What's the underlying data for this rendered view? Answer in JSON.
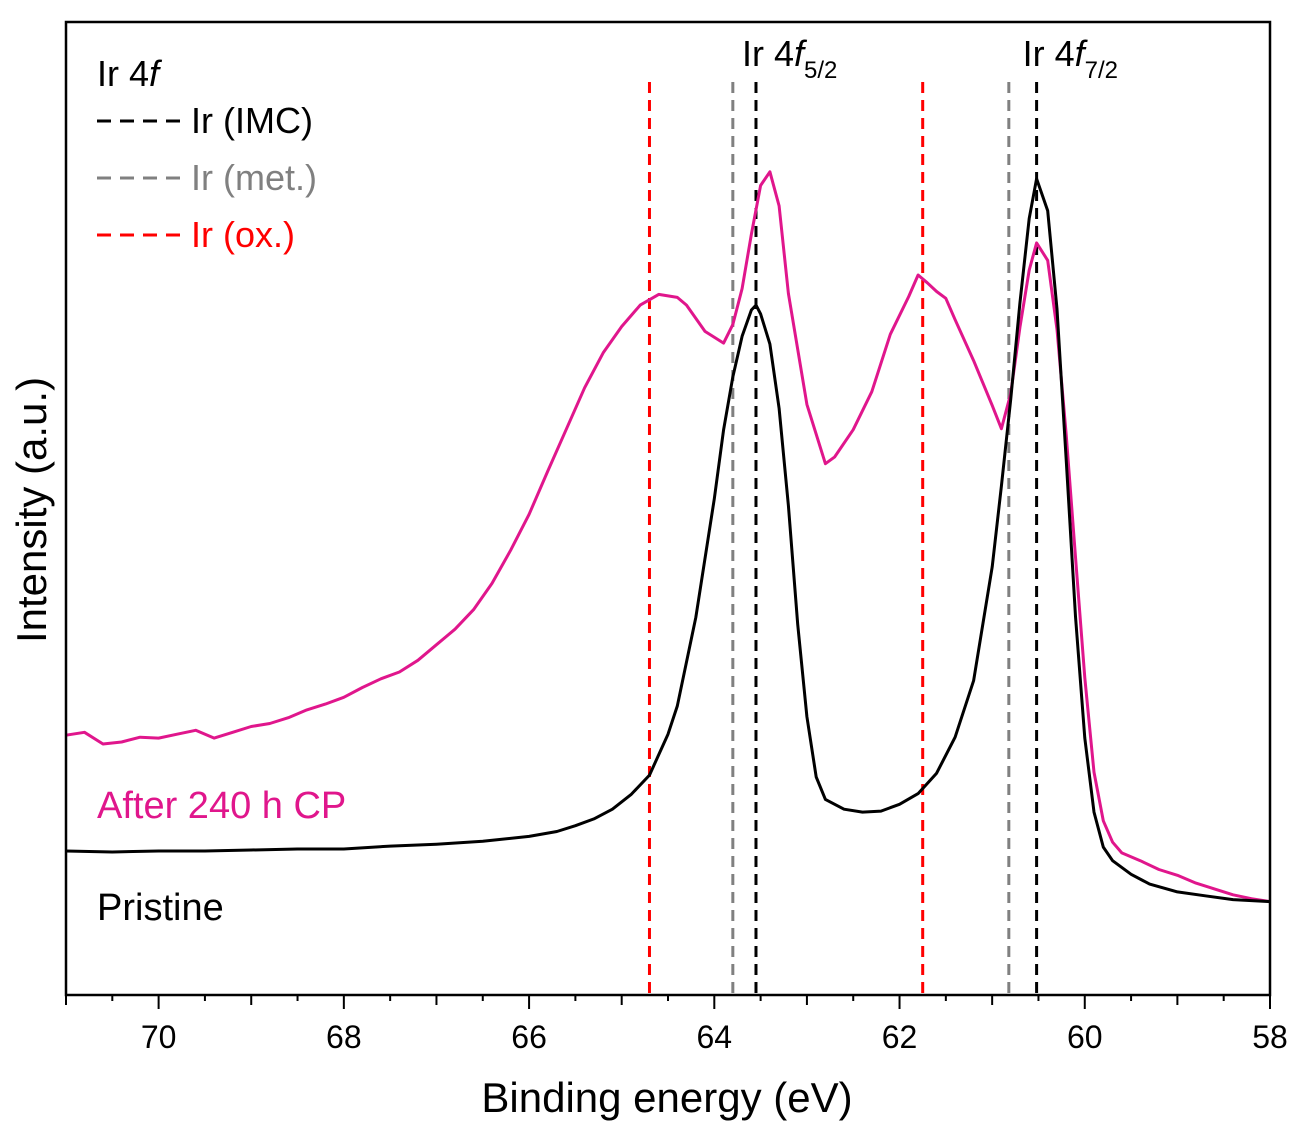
{
  "chart_data": {
    "type": "line",
    "panel_label": "Ir 4",
    "panel_label_italic": "f",
    "xlabel": "Binding energy (eV)",
    "ylabel": "Intensity (a.u.)",
    "xlim": [
      71.0,
      58.0
    ],
    "x_reversed": true,
    "ylim": [
      0,
      100
    ],
    "y_ticks_shown": false,
    "x_ticks": [
      {
        "value": 70,
        "label": "70"
      },
      {
        "value": 68,
        "label": "68"
      },
      {
        "value": 66,
        "label": "66"
      },
      {
        "value": 64,
        "label": "64"
      },
      {
        "value": 62,
        "label": "62"
      },
      {
        "value": 60,
        "label": "60"
      },
      {
        "value": 58,
        "label": "58"
      }
    ],
    "reference_lines": [
      {
        "name": "Ir (IMC)",
        "color": "#000000",
        "positions": [
          63.55,
          60.52
        ]
      },
      {
        "name": "Ir (met.)",
        "color": "#808080",
        "positions": [
          63.8,
          60.82
        ]
      },
      {
        "name": "Ir (ox.)",
        "color": "#ff0000",
        "positions": [
          64.7,
          61.75
        ]
      }
    ],
    "legend": {
      "placement": "top-left",
      "entries": [
        {
          "label": "Ir (IMC)",
          "color": "#000000"
        },
        {
          "label": "Ir (met.)",
          "color": "#808080"
        },
        {
          "label": "Ir (ox.)",
          "color": "#ff0000"
        }
      ]
    },
    "peak_annotations": [
      {
        "base": "Ir 4",
        "italic": "f",
        "sub": "5/2",
        "x": 63.55
      },
      {
        "base": "Ir 4",
        "italic": "f",
        "sub": "7/2",
        "x": 60.52
      }
    ],
    "series": [
      {
        "name": "After 240 h CP",
        "color": "#e0168c",
        "points": [
          [
            71.0,
            26.7
          ],
          [
            70.8,
            27.0
          ],
          [
            70.6,
            25.8
          ],
          [
            70.4,
            26.0
          ],
          [
            70.2,
            26.5
          ],
          [
            70.0,
            26.4
          ],
          [
            69.8,
            26.8
          ],
          [
            69.6,
            27.2
          ],
          [
            69.4,
            26.4
          ],
          [
            69.2,
            27.0
          ],
          [
            69.0,
            27.6
          ],
          [
            68.8,
            27.9
          ],
          [
            68.6,
            28.5
          ],
          [
            68.4,
            29.3
          ],
          [
            68.2,
            29.9
          ],
          [
            68.0,
            30.6
          ],
          [
            67.8,
            31.6
          ],
          [
            67.6,
            32.5
          ],
          [
            67.4,
            33.2
          ],
          [
            67.2,
            34.4
          ],
          [
            67.0,
            36.0
          ],
          [
            66.8,
            37.6
          ],
          [
            66.6,
            39.6
          ],
          [
            66.4,
            42.3
          ],
          [
            66.2,
            45.7
          ],
          [
            66.0,
            49.4
          ],
          [
            65.8,
            53.8
          ],
          [
            65.6,
            58.1
          ],
          [
            65.4,
            62.4
          ],
          [
            65.2,
            66.0
          ],
          [
            65.0,
            68.7
          ],
          [
            64.8,
            70.9
          ],
          [
            64.6,
            72.0
          ],
          [
            64.4,
            71.7
          ],
          [
            64.3,
            70.9
          ],
          [
            64.1,
            68.2
          ],
          [
            63.9,
            67.0
          ],
          [
            63.8,
            68.9
          ],
          [
            63.7,
            72.6
          ],
          [
            63.6,
            78.2
          ],
          [
            63.5,
            83.2
          ],
          [
            63.4,
            84.6
          ],
          [
            63.3,
            81.1
          ],
          [
            63.2,
            72.1
          ],
          [
            63.0,
            60.7
          ],
          [
            62.8,
            54.6
          ],
          [
            62.7,
            55.3
          ],
          [
            62.5,
            58.1
          ],
          [
            62.3,
            62.0
          ],
          [
            62.1,
            67.9
          ],
          [
            61.9,
            71.8
          ],
          [
            61.8,
            74.0
          ],
          [
            61.7,
            73.2
          ],
          [
            61.6,
            72.3
          ],
          [
            61.5,
            71.6
          ],
          [
            61.4,
            69.4
          ],
          [
            61.2,
            65.2
          ],
          [
            61.0,
            60.6
          ],
          [
            60.9,
            58.2
          ],
          [
            60.8,
            61.8
          ],
          [
            60.7,
            68.6
          ],
          [
            60.6,
            74.5
          ],
          [
            60.52,
            77.3
          ],
          [
            60.4,
            75.5
          ],
          [
            60.3,
            68.4
          ],
          [
            60.2,
            57.6
          ],
          [
            60.1,
            45.0
          ],
          [
            60.0,
            32.6
          ],
          [
            59.9,
            22.9
          ],
          [
            59.8,
            17.9
          ],
          [
            59.7,
            15.7
          ],
          [
            59.6,
            14.6
          ],
          [
            59.4,
            13.8
          ],
          [
            59.2,
            12.9
          ],
          [
            59.0,
            12.3
          ],
          [
            58.8,
            11.5
          ],
          [
            58.6,
            10.9
          ],
          [
            58.4,
            10.3
          ],
          [
            58.2,
            9.9
          ],
          [
            58.0,
            9.6
          ]
        ]
      },
      {
        "name": "Pristine",
        "color": "#000000",
        "points": [
          [
            71.0,
            14.8
          ],
          [
            70.5,
            14.7
          ],
          [
            70.0,
            14.8
          ],
          [
            69.5,
            14.8
          ],
          [
            69.0,
            14.9
          ],
          [
            68.5,
            15.0
          ],
          [
            68.0,
            15.0
          ],
          [
            67.5,
            15.3
          ],
          [
            67.0,
            15.5
          ],
          [
            66.5,
            15.8
          ],
          [
            66.0,
            16.3
          ],
          [
            65.7,
            16.8
          ],
          [
            65.5,
            17.4
          ],
          [
            65.3,
            18.1
          ],
          [
            65.1,
            19.1
          ],
          [
            64.9,
            20.6
          ],
          [
            64.7,
            22.6
          ],
          [
            64.5,
            26.8
          ],
          [
            64.4,
            29.7
          ],
          [
            64.2,
            38.8
          ],
          [
            64.0,
            51.0
          ],
          [
            63.9,
            58.1
          ],
          [
            63.8,
            63.5
          ],
          [
            63.7,
            67.7
          ],
          [
            63.6,
            70.4
          ],
          [
            63.55,
            70.9
          ],
          [
            63.5,
            70.0
          ],
          [
            63.4,
            66.9
          ],
          [
            63.3,
            60.3
          ],
          [
            63.2,
            50.3
          ],
          [
            63.1,
            38.1
          ],
          [
            63.0,
            28.6
          ],
          [
            62.9,
            22.4
          ],
          [
            62.8,
            20.1
          ],
          [
            62.6,
            19.1
          ],
          [
            62.4,
            18.8
          ],
          [
            62.2,
            18.9
          ],
          [
            62.0,
            19.6
          ],
          [
            61.8,
            20.7
          ],
          [
            61.6,
            22.8
          ],
          [
            61.4,
            26.5
          ],
          [
            61.2,
            32.3
          ],
          [
            61.0,
            44.0
          ],
          [
            60.9,
            52.3
          ],
          [
            60.8,
            61.2
          ],
          [
            60.7,
            71.1
          ],
          [
            60.6,
            79.8
          ],
          [
            60.52,
            83.9
          ],
          [
            60.4,
            80.6
          ],
          [
            60.3,
            70.5
          ],
          [
            60.2,
            55.0
          ],
          [
            60.1,
            38.9
          ],
          [
            60.0,
            26.4
          ],
          [
            59.9,
            18.8
          ],
          [
            59.8,
            15.2
          ],
          [
            59.7,
            13.8
          ],
          [
            59.5,
            12.4
          ],
          [
            59.3,
            11.4
          ],
          [
            59.0,
            10.6
          ],
          [
            58.7,
            10.2
          ],
          [
            58.4,
            9.8
          ],
          [
            58.0,
            9.6
          ]
        ]
      }
    ],
    "series_labels": [
      {
        "text": "After 240 h CP",
        "color": "#e0168c"
      },
      {
        "text": "Pristine",
        "color": "#000000"
      }
    ]
  }
}
